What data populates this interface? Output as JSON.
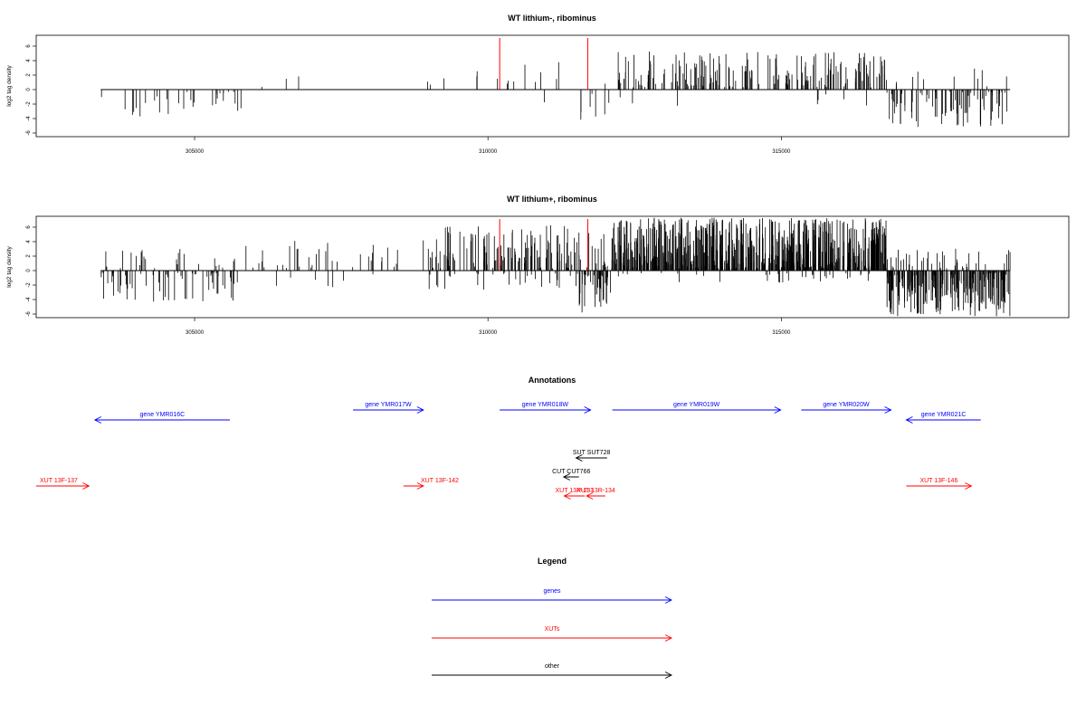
{
  "colors": {
    "gene": "#0000ff",
    "xut": "#ff0000",
    "other": "#000000",
    "marker": "#ff0000"
  },
  "chart_data": [
    {
      "type": "bar",
      "title": "WT lithium-, ribominus",
      "ylabel": "log2 tag density",
      "ylim": [
        -6.5,
        7.5
      ],
      "yticks": [
        -6,
        -4,
        -2,
        0,
        2,
        4,
        6
      ],
      "xlim": [
        302300,
        319900
      ],
      "xticks": [
        305000,
        310000,
        315000
      ],
      "baseline": [
        303400,
        318900
      ],
      "markers": [
        310200,
        311700
      ],
      "density": "sparse"
    },
    {
      "type": "bar",
      "title": "WT lithium+, ribominus",
      "ylabel": "log2 tag density",
      "ylim": [
        -6.5,
        7.5
      ],
      "yticks": [
        -6,
        -4,
        -2,
        0,
        2,
        4,
        6
      ],
      "xlim": [
        302300,
        319900
      ],
      "xticks": [
        305000,
        310000,
        315000
      ],
      "baseline": [
        303400,
        318900
      ],
      "markers": [
        310200,
        311700
      ],
      "density": "dense"
    }
  ],
  "annotations": {
    "title": "Annotations",
    "features": [
      {
        "label": "gene YMR016C",
        "kind": "gene",
        "start": 303300,
        "end": 305600,
        "strand": "-",
        "row": 1
      },
      {
        "label": "gene YMR017W",
        "kind": "gene",
        "start": 307700,
        "end": 308900,
        "strand": "+",
        "row": 0
      },
      {
        "label": "gene YMR018W",
        "kind": "gene",
        "start": 310200,
        "end": 311750,
        "strand": "+",
        "row": 0
      },
      {
        "label": "gene YMR019W",
        "kind": "gene",
        "start": 312120,
        "end": 314990,
        "strand": "+",
        "row": 0
      },
      {
        "label": "gene YMR020W",
        "kind": "gene",
        "start": 315340,
        "end": 316870,
        "strand": "+",
        "row": 0
      },
      {
        "label": "gene YMR021C",
        "kind": "gene",
        "start": 317130,
        "end": 318400,
        "strand": "-",
        "row": 1
      },
      {
        "label": "SUT SUT728",
        "kind": "other",
        "start": 311500,
        "end": 312030,
        "strand": "-",
        "row": 2
      },
      {
        "label": "CUT CUT766",
        "kind": "other",
        "start": 311290,
        "end": 311550,
        "strand": "-",
        "row": 3
      },
      {
        "label": "XUT 13F-137",
        "kind": "xut",
        "start": 302300,
        "end": 303200,
        "strand": "+",
        "row": 4
      },
      {
        "label": "XUT 13F-142",
        "kind": "xut",
        "start": 308560,
        "end": 308900,
        "strand": "+",
        "row": 4
      },
      {
        "label": "XUT 13R-134",
        "kind": "xut",
        "start": 311680,
        "end": 312000,
        "strand": "-",
        "row": 5
      },
      {
        "label": "XUT 13R-133",
        "kind": "xut",
        "start": 311300,
        "end": 311650,
        "strand": "-",
        "row": 5
      },
      {
        "label": "XUT 13F-146",
        "kind": "xut",
        "start": 317130,
        "end": 318240,
        "strand": "+",
        "row": 4
      }
    ]
  },
  "legend": {
    "title": "Legend",
    "items": [
      {
        "label": "genes",
        "kind": "gene"
      },
      {
        "label": "XUTs",
        "kind": "xut"
      },
      {
        "label": "other",
        "kind": "other"
      }
    ]
  }
}
